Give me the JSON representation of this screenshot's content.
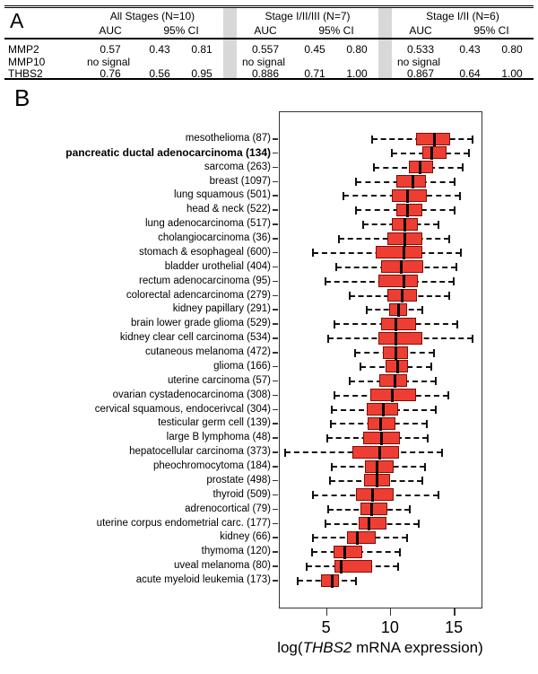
{
  "panel_a": {
    "label": "A",
    "groups": [
      {
        "name": "All Stages (N=10)"
      },
      {
        "name": "Stage I/II/III (N=7)"
      },
      {
        "name": "Stage I/II (N=6)"
      }
    ],
    "subheaders": {
      "auc": "AUC",
      "ci": "95% CI"
    },
    "rows": [
      {
        "gene": "MMP2",
        "values": [
          [
            "0.57",
            "0.43",
            "0.81"
          ],
          [
            "0.557",
            "0.45",
            "0.80"
          ],
          [
            "0.533",
            "0.43",
            "0.80"
          ]
        ]
      },
      {
        "gene": "MMP10",
        "no_signal": "no signal"
      },
      {
        "gene": "THBS2",
        "values": [
          [
            "0.76",
            "0.56",
            "0.95"
          ],
          [
            "0.886",
            "0.71",
            "1.00"
          ],
          [
            "0.867",
            "0.64",
            "1.00"
          ]
        ]
      }
    ]
  },
  "panel_b": {
    "label": "B",
    "xlabel_prefix": "log(",
    "xlabel_gene": "THBS2",
    "xlabel_suffix": " mRNA expression)"
  },
  "chart_data": {
    "type": "boxplot",
    "orientation": "horizontal",
    "title": "",
    "xlabel": "log(THBS2 mRNA expression)",
    "xlim": [
      1.3,
      17.1
    ],
    "x_ticks": [
      5,
      10,
      15
    ],
    "grid": false,
    "box_fill": "#ee3e33",
    "box_border": "#7a0f08",
    "median_color": "#0a0000",
    "whisker_color": "#111111",
    "stats_order": [
      "min",
      "q1",
      "median",
      "q3",
      "max"
    ],
    "rows": [
      {
        "label": "mesothelioma (87)",
        "bold": false,
        "stats": [
          8.5,
          12.0,
          13.4,
          14.5,
          16.4
        ]
      },
      {
        "label": "pancreatic ductal adenocarcinoma (134)",
        "bold": true,
        "stats": [
          10.1,
          12.5,
          13.2,
          14.2,
          16.1
        ]
      },
      {
        "label": "sarcoma (263)",
        "bold": false,
        "stats": [
          8.7,
          11.4,
          12.3,
          13.2,
          15.6
        ]
      },
      {
        "label": "breast (1097)",
        "bold": false,
        "stats": [
          7.3,
          10.4,
          11.7,
          12.6,
          15.0
        ]
      },
      {
        "label": "lung squamous (501)",
        "bold": false,
        "stats": [
          6.3,
          10.1,
          11.3,
          12.7,
          15.4
        ]
      },
      {
        "label": "head & neck (522)",
        "bold": false,
        "stats": [
          7.3,
          10.4,
          11.3,
          12.3,
          15.0
        ]
      },
      {
        "label": "lung adenocarcinoma (517)",
        "bold": false,
        "stats": [
          7.8,
          10.1,
          11.1,
          12.0,
          13.7
        ]
      },
      {
        "label": "cholangiocarcinoma (36)",
        "bold": false,
        "stats": [
          5.9,
          9.7,
          11.1,
          12.3,
          14.6
        ]
      },
      {
        "label": "stomach & esophageal (600)",
        "bold": false,
        "stats": [
          3.9,
          8.8,
          11.0,
          12.3,
          15.5
        ]
      },
      {
        "label": "bladder urothelial (404)",
        "bold": false,
        "stats": [
          5.7,
          9.2,
          10.8,
          12.4,
          15.1
        ]
      },
      {
        "label": "rectum adenocarcinoma (95)",
        "bold": false,
        "stats": [
          4.9,
          9.0,
          11.0,
          12.0,
          14.9
        ]
      },
      {
        "label": "colorectal adencarcinoma (279)",
        "bold": false,
        "stats": [
          6.8,
          9.7,
          10.9,
          11.9,
          14.6
        ]
      },
      {
        "label": "kidney papillary (291)",
        "bold": false,
        "stats": [
          8.1,
          9.9,
          10.6,
          11.1,
          12.5
        ]
      },
      {
        "label": "brain lower grade glioma (529)",
        "bold": false,
        "stats": [
          5.6,
          9.2,
          10.4,
          11.8,
          15.2
        ]
      },
      {
        "label": "kidney clear cell carcinoma (534)",
        "bold": false,
        "stats": [
          5.1,
          9.0,
          10.4,
          12.3,
          16.4
        ]
      },
      {
        "label": "cutaneous melanoma (472)",
        "bold": false,
        "stats": [
          7.2,
          9.4,
          10.4,
          11.2,
          13.4
        ]
      },
      {
        "label": "glioma (166)",
        "bold": false,
        "stats": [
          7.6,
          9.6,
          10.5,
          11.2,
          13.2
        ]
      },
      {
        "label": "uterine carcinoma (57)",
        "bold": false,
        "stats": [
          6.8,
          9.1,
          10.3,
          11.1,
          13.5
        ]
      },
      {
        "label": "ovarian cystadenocarcinoma (308)",
        "bold": false,
        "stats": [
          5.6,
          8.4,
          10.1,
          11.8,
          14.5
        ]
      },
      {
        "label": "cervical squamous, endocerivcal (304)",
        "bold": false,
        "stats": [
          5.4,
          8.1,
          9.4,
          10.4,
          13.5
        ]
      },
      {
        "label": "testicular germ cell (139)",
        "bold": false,
        "stats": [
          5.3,
          8.2,
          9.2,
          10.2,
          12.8
        ]
      },
      {
        "label": "large B lymphoma (48)",
        "bold": false,
        "stats": [
          5.0,
          7.8,
          9.3,
          10.6,
          12.9
        ]
      },
      {
        "label": "hepatocellular carcinoma (373)",
        "bold": false,
        "stats": [
          1.7,
          7.0,
          9.1,
          10.5,
          14.0
        ]
      },
      {
        "label": "pheochromocytoma (184)",
        "bold": false,
        "stats": [
          5.4,
          8.0,
          8.9,
          10.1,
          12.7
        ]
      },
      {
        "label": "prostate (498)",
        "bold": false,
        "stats": [
          5.2,
          7.9,
          8.9,
          9.8,
          12.5
        ]
      },
      {
        "label": "thyroid (509)",
        "bold": false,
        "stats": [
          3.9,
          7.3,
          8.6,
          10.1,
          13.7
        ]
      },
      {
        "label": "adrenocortical (79)",
        "bold": false,
        "stats": [
          5.1,
          7.6,
          8.5,
          9.6,
          11.5
        ]
      },
      {
        "label": "uterine corpus endometrial carc. (177)",
        "bold": false,
        "stats": [
          4.9,
          7.5,
          8.3,
          9.5,
          12.2
        ]
      },
      {
        "label": "kidney (66)",
        "bold": false,
        "stats": [
          3.9,
          6.6,
          7.4,
          8.7,
          11.3
        ]
      },
      {
        "label": "thymoma (120)",
        "bold": false,
        "stats": [
          3.8,
          5.5,
          6.4,
          7.6,
          10.7
        ]
      },
      {
        "label": "uveal melanoma (80)",
        "bold": false,
        "stats": [
          3.4,
          5.6,
          6.1,
          8.4,
          10.6
        ]
      },
      {
        "label": "acute myeloid leukemia (173)",
        "bold": false,
        "stats": [
          2.7,
          4.5,
          5.4,
          5.8,
          7.3
        ]
      }
    ]
  }
}
